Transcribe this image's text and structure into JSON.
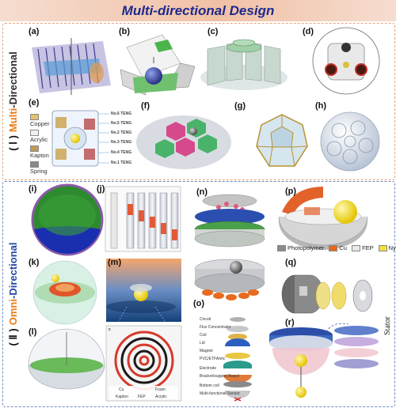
{
  "title": "Multi-directional Design",
  "section1": {
    "numeral": "( Ⅰ )",
    "word_prefix": "Multi",
    "word_suffix": "-Directional"
  },
  "section2": {
    "numeral": "( Ⅱ )",
    "word_prefix": "Omni",
    "word_suffix": "-Directional"
  },
  "panel_labels": [
    "(a)",
    "(b)",
    "(c)",
    "(d)",
    "(e)",
    "(f)",
    "(g)",
    "(h)",
    "(i)",
    "(j)",
    "(k)",
    "(l)",
    "(m)",
    "(n)",
    "(o)",
    "(p)",
    "(q)",
    "(r)"
  ],
  "panel_e": {
    "materials": [
      "Copper",
      "Acrylic",
      "Kapton",
      "Spring"
    ],
    "tengs": [
      "No.6 TENG",
      "No.5 TENG",
      "No.2 TENG",
      "No.3 TENG",
      "No.4 TENG",
      "No.1 TENG"
    ]
  },
  "panel_m_legend": {
    "label": "c",
    "items": [
      "Cu",
      "Foam",
      "Kapton",
      "FEP",
      "Acrylic"
    ]
  },
  "panel_o_layers": [
    "Circuit",
    "Flux Concentrator",
    "Coil",
    "Lid",
    "Magnet",
    "PVC/ETFA/etc",
    "Electrode",
    "Bracket/support Board",
    "Bottom coil",
    "Multi-functional Sensor"
  ],
  "panel_p_legend": [
    "Photopolymer",
    "Cu",
    "FEP",
    "Nylon"
  ],
  "panel_r_label": "Stator"
}
